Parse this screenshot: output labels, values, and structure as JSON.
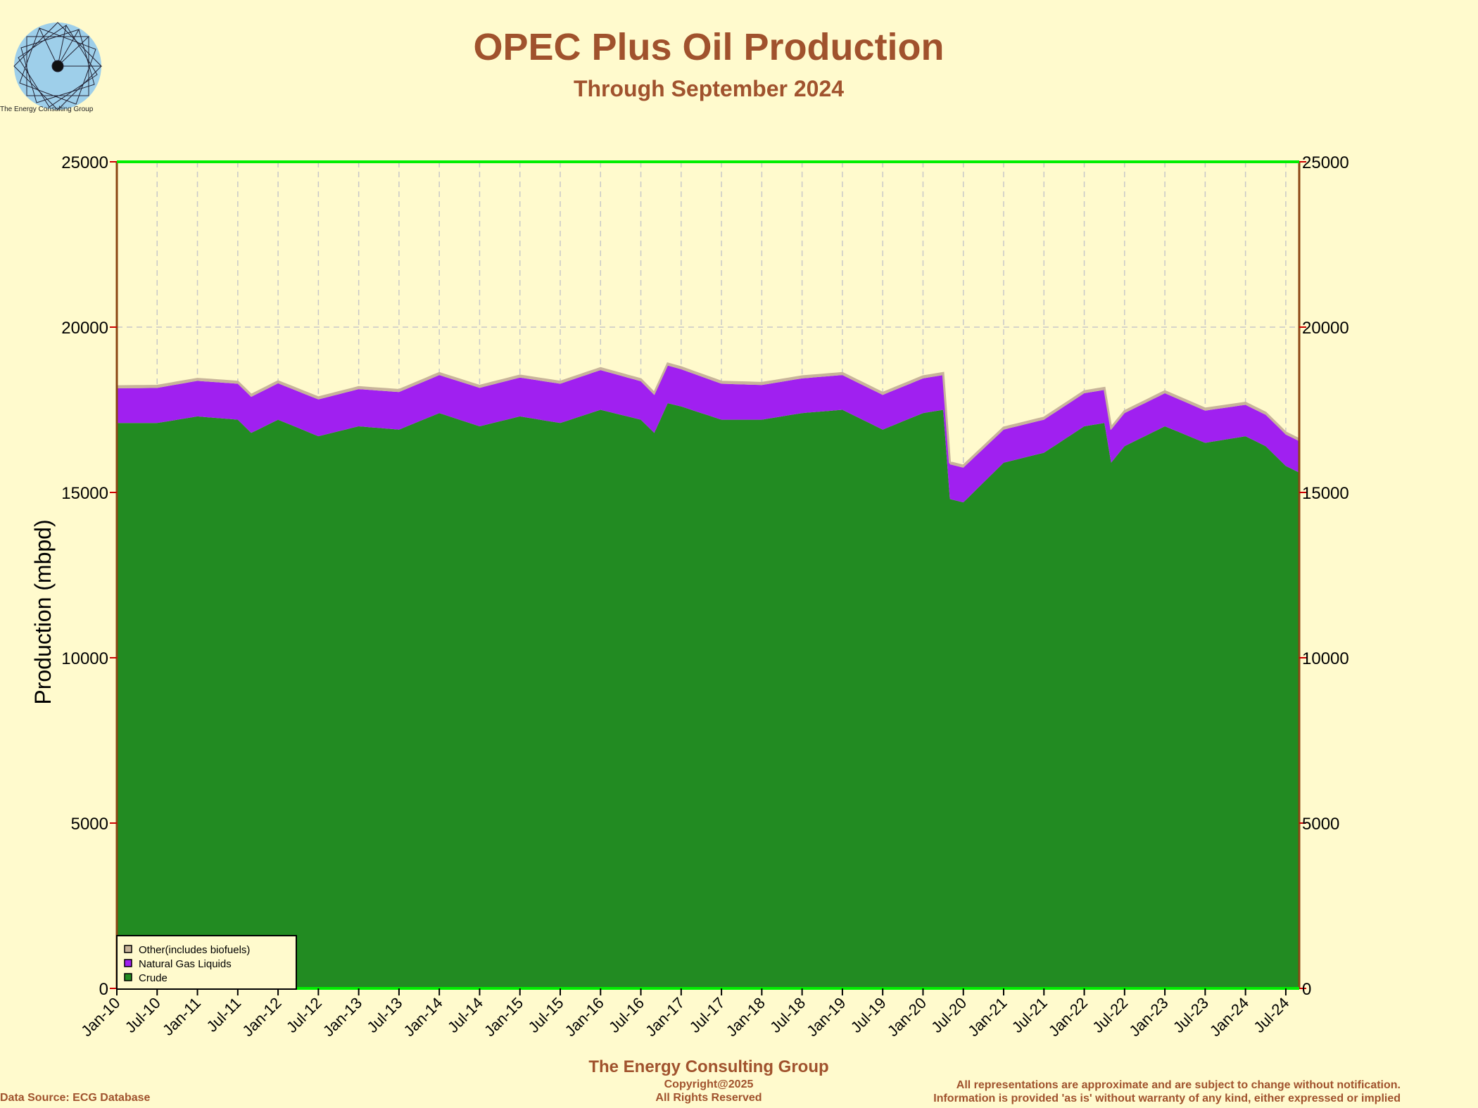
{
  "header": {
    "title": "OPEC Plus Oil Production",
    "subtitle": "Through September 2024",
    "logo_caption": "The Energy Consulting Group"
  },
  "footer": {
    "company": "The Energy Consulting Group",
    "copyright": "Copyright@2025",
    "rights": "All Rights Reserved",
    "data_source": "Data Source: ECG Database",
    "disclaimer_1": "All representations are approximate and are subject to change without notification.",
    "disclaimer_2": "Information is provided 'as is' without warranty of any kind, either expressed or implied"
  },
  "colors": {
    "background": "#FFFACD",
    "title": "#A0522D",
    "crude": "#228B22",
    "ngl": "#A020F0",
    "other": "#C8B49A",
    "axis_top_bottom": "#00EE00",
    "axis_sides": "#8B4513"
  },
  "chart_data": {
    "type": "area",
    "stacked": true,
    "ylabel": "Production (mbpd)",
    "ylim": [
      0,
      25000
    ],
    "yticks": [
      0,
      5000,
      10000,
      15000,
      20000,
      25000
    ],
    "right_axis": true,
    "grid": true,
    "x_start": "Jan-10",
    "x_end": "Sep-24",
    "xticks": [
      "Jan-10",
      "Jul-10",
      "Jan-11",
      "Jul-11",
      "Jan-12",
      "Jul-12",
      "Jan-13",
      "Jul-13",
      "Jan-14",
      "Jul-14",
      "Jan-15",
      "Jul-15",
      "Jan-16",
      "Jul-16",
      "Jan-17",
      "Jul-17",
      "Jan-18",
      "Jul-18",
      "Jan-19",
      "Jul-19",
      "Jan-20",
      "Jul-20",
      "Jan-21",
      "Jul-21",
      "Jan-22",
      "Jul-22",
      "Jan-23",
      "Jul-23",
      "Jan-24",
      "Jul-24"
    ],
    "legend": {
      "position": "bottom-left",
      "entries": [
        {
          "name": "Other(includes biofuels)",
          "color": "#C8B49A"
        },
        {
          "name": "Natural Gas Liquids",
          "color": "#A020F0"
        },
        {
          "name": "Crude",
          "color": "#228B22"
        }
      ]
    },
    "series": [
      {
        "name": "Crude",
        "keypoints": [
          [
            "Jan-10",
            17100
          ],
          [
            "Jul-10",
            17100
          ],
          [
            "Jan-11",
            17300
          ],
          [
            "Jul-11",
            17200
          ],
          [
            "Sep-11",
            16800
          ],
          [
            "Jan-12",
            17200
          ],
          [
            "Jul-12",
            16700
          ],
          [
            "Jan-13",
            17000
          ],
          [
            "Jul-13",
            16900
          ],
          [
            "Jan-14",
            17400
          ],
          [
            "Jul-14",
            17000
          ],
          [
            "Jan-15",
            17300
          ],
          [
            "Jul-15",
            17100
          ],
          [
            "Jan-16",
            17500
          ],
          [
            "Jul-16",
            17200
          ],
          [
            "Sep-16",
            16800
          ],
          [
            "Nov-16",
            17700
          ],
          [
            "Jan-17",
            17600
          ],
          [
            "Jul-17",
            17200
          ],
          [
            "Jan-18",
            17200
          ],
          [
            "Jul-18",
            17400
          ],
          [
            "Jan-19",
            17500
          ],
          [
            "Jul-19",
            16900
          ],
          [
            "Jan-20",
            17400
          ],
          [
            "Apr-20",
            17500
          ],
          [
            "May-20",
            14800
          ],
          [
            "Jul-20",
            14700
          ],
          [
            "Jan-21",
            15900
          ],
          [
            "Jul-21",
            16200
          ],
          [
            "Jan-22",
            17000
          ],
          [
            "Apr-22",
            17100
          ],
          [
            "May-22",
            15900
          ],
          [
            "Jul-22",
            16400
          ],
          [
            "Jan-23",
            17000
          ],
          [
            "Jul-23",
            16500
          ],
          [
            "Jan-24",
            16700
          ],
          [
            "Apr-24",
            16400
          ],
          [
            "Jul-24",
            15800
          ],
          [
            "Sep-24",
            15600
          ]
        ]
      },
      {
        "name": "Natural Gas Liquids",
        "keypoints": [
          [
            "Jan-10",
            1050
          ],
          [
            "Jan-12",
            1100
          ],
          [
            "Jan-14",
            1150
          ],
          [
            "Jan-16",
            1200
          ],
          [
            "Jan-18",
            1050
          ],
          [
            "Jan-20",
            1050
          ],
          [
            "Jul-20",
            1050
          ],
          [
            "Jan-21",
            1000
          ],
          [
            "Jul-21",
            1000
          ],
          [
            "Jan-22",
            1000
          ],
          [
            "Jan-23",
            1000
          ],
          [
            "Jan-24",
            950
          ],
          [
            "Sep-24",
            950
          ]
        ]
      },
      {
        "name": "Other(includes biofuels)",
        "keypoints": [
          [
            "Jan-10",
            60
          ],
          [
            "Sep-24",
            60
          ]
        ]
      }
    ]
  }
}
